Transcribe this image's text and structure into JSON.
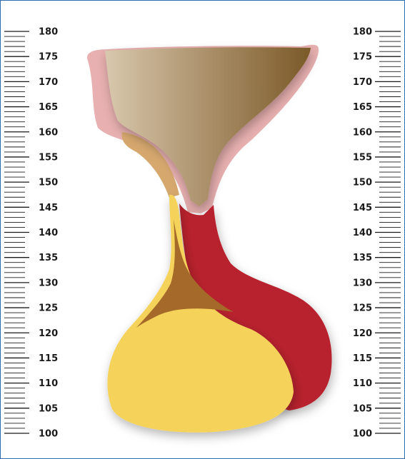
{
  "scale": {
    "min": 100,
    "max": 180,
    "minor_step": 1,
    "label_step": 5,
    "labels": [
      "180",
      "175",
      "170",
      "165",
      "160",
      "155",
      "150",
      "145",
      "140",
      "135",
      "130",
      "125",
      "120",
      "115",
      "110",
      "105",
      "100"
    ]
  },
  "colors": {
    "frame_border": "#2f6fb0",
    "pink_outline": "#e8b0b0",
    "tan_shape": "#d6a86e",
    "funnel_light": "#d8c3a5",
    "funnel_dark": "#7a5a2a",
    "red_body": "#b8242e",
    "yellow_body": "#f5d35a",
    "brown_wedge": "#a56a2a"
  }
}
